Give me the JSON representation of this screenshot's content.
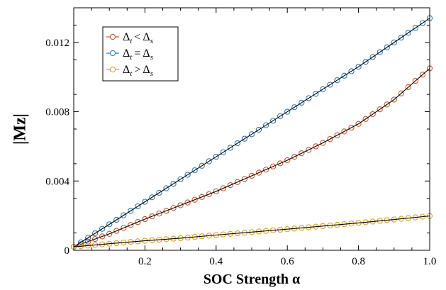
{
  "chart_data": {
    "type": "line",
    "xlabel": "SOC Strength α",
    "ylabel": "|Mz|",
    "xlim": [
      0,
      1.0
    ],
    "ylim": [
      0,
      0.014
    ],
    "xticks": [
      0.2,
      0.4,
      0.6,
      0.8,
      1.0
    ],
    "xtick_labels": [
      "0.2",
      "0.4",
      "0.6",
      "0.8",
      "1.0"
    ],
    "yticks": [
      0,
      0.004,
      0.008,
      0.012
    ],
    "ytick_labels": [
      "0",
      "0.004",
      "0.008",
      "0.012"
    ],
    "grid": false,
    "legend_position": "top-left",
    "marker": "open-circle",
    "line_color": "#000000",
    "series": [
      {
        "name": "Δt < Δs",
        "label_main": "Δ",
        "label_sub1": "t",
        "label_op": "<",
        "label_sub2": "s",
        "color": "#c8582d",
        "points": [
          [
            0.0,
            0.0002
          ],
          [
            0.1,
            0.00095
          ],
          [
            0.2,
            0.0018
          ],
          [
            0.3,
            0.0026
          ],
          [
            0.4,
            0.0034
          ],
          [
            0.5,
            0.0043
          ],
          [
            0.6,
            0.0052
          ],
          [
            0.7,
            0.0062
          ],
          [
            0.8,
            0.0073
          ],
          [
            0.9,
            0.0087
          ],
          [
            1.0,
            0.0105
          ]
        ]
      },
      {
        "name": "Δt = Δs",
        "label_main": "Δ",
        "label_sub1": "t",
        "label_op": "=",
        "label_sub2": "s",
        "color": "#2e7bb5",
        "points": [
          [
            0.0,
            0.0002
          ],
          [
            0.1,
            0.0015
          ],
          [
            0.2,
            0.0028
          ],
          [
            0.3,
            0.0041
          ],
          [
            0.4,
            0.0054
          ],
          [
            0.5,
            0.0067
          ],
          [
            0.6,
            0.008
          ],
          [
            0.7,
            0.0093
          ],
          [
            0.8,
            0.0106
          ],
          [
            0.9,
            0.012
          ],
          [
            1.0,
            0.0134
          ]
        ]
      },
      {
        "name": "Δt > Δs",
        "label_main": "Δ",
        "label_sub1": "t",
        "label_op": ">",
        "label_sub2": "s",
        "color": "#e0a020",
        "points": [
          [
            0.0,
            0.0002
          ],
          [
            0.1,
            0.00038
          ],
          [
            0.2,
            0.00055
          ],
          [
            0.3,
            0.0007
          ],
          [
            0.4,
            0.00088
          ],
          [
            0.5,
            0.00105
          ],
          [
            0.6,
            0.00122
          ],
          [
            0.7,
            0.0014
          ],
          [
            0.8,
            0.00158
          ],
          [
            0.9,
            0.00178
          ],
          [
            1.0,
            0.00198
          ]
        ]
      }
    ]
  }
}
